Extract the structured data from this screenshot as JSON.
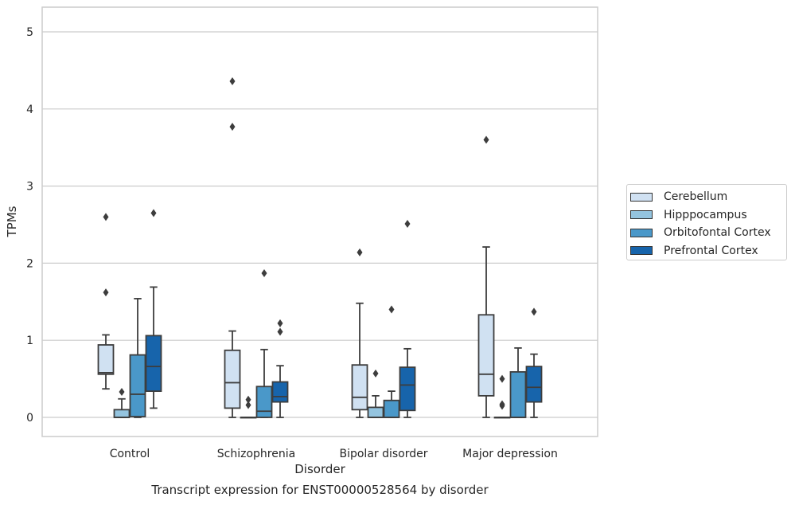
{
  "chart_data": {
    "type": "box",
    "caption": "Transcript expression for ENST00000528564 by disorder",
    "xlabel": "Disorder",
    "ylabel": "TPMs",
    "ylim": [
      -0.25,
      5.32
    ],
    "yticks": [
      0,
      1,
      2,
      3,
      4,
      5
    ],
    "grid": "horizontal",
    "legend_position": "right",
    "categories": [
      "Control",
      "Schizophrenia",
      "Bipolar disorder",
      "Major depression"
    ],
    "series": [
      {
        "name": "Cerebellum",
        "color": "#d0e1f2",
        "boxes": [
          {
            "whisker_low": 0.37,
            "q1": 0.56,
            "median": 0.58,
            "q3": 0.94,
            "whisker_high": 1.07,
            "outliers": [
              1.62,
              2.6
            ]
          },
          {
            "whisker_low": 0.0,
            "q1": 0.12,
            "median": 0.45,
            "q3": 0.87,
            "whisker_high": 1.12,
            "outliers": [
              3.77,
              4.36
            ]
          },
          {
            "whisker_low": 0.0,
            "q1": 0.1,
            "median": 0.26,
            "q3": 0.68,
            "whisker_high": 1.48,
            "outliers": [
              2.14
            ]
          },
          {
            "whisker_low": 0.0,
            "q1": 0.28,
            "median": 0.56,
            "q3": 1.33,
            "whisker_high": 2.21,
            "outliers": [
              3.6
            ]
          }
        ]
      },
      {
        "name": "Hipppocampus",
        "color": "#94c4df",
        "boxes": [
          {
            "whisker_low": 0.0,
            "q1": 0.0,
            "median": 0.0,
            "q3": 0.1,
            "whisker_high": 0.24,
            "outliers": [
              0.33
            ]
          },
          {
            "whisker_low": 0.0,
            "q1": 0.0,
            "median": 0.0,
            "q3": 0.0,
            "whisker_high": 0.0,
            "outliers": [
              0.16,
              0.23
            ]
          },
          {
            "whisker_low": 0.0,
            "q1": 0.0,
            "median": 0.0,
            "q3": 0.13,
            "whisker_high": 0.28,
            "outliers": [
              0.57
            ]
          },
          {
            "whisker_low": 0.0,
            "q1": 0.0,
            "median": 0.0,
            "q3": 0.0,
            "whisker_high": 0.0,
            "outliers": [
              0.15,
              0.17,
              0.5
            ]
          }
        ]
      },
      {
        "name": "Orbitofontal Cortex",
        "color": "#4a98c9",
        "boxes": [
          {
            "whisker_low": 0.0,
            "q1": 0.01,
            "median": 0.3,
            "q3": 0.81,
            "whisker_high": 1.54,
            "outliers": []
          },
          {
            "whisker_low": 0.0,
            "q1": 0.0,
            "median": 0.08,
            "q3": 0.4,
            "whisker_high": 0.88,
            "outliers": [
              1.87
            ]
          },
          {
            "whisker_low": 0.0,
            "q1": 0.0,
            "median": 0.0,
            "q3": 0.22,
            "whisker_high": 0.34,
            "outliers": [
              1.4
            ]
          },
          {
            "whisker_low": 0.0,
            "q1": 0.0,
            "median": 0.0,
            "q3": 0.59,
            "whisker_high": 0.9,
            "outliers": []
          }
        ]
      },
      {
        "name": "Prefrontal Cortex",
        "color": "#1764ab",
        "boxes": [
          {
            "whisker_low": 0.12,
            "q1": 0.34,
            "median": 0.66,
            "q3": 1.06,
            "whisker_high": 1.69,
            "outliers": [
              2.65
            ]
          },
          {
            "whisker_low": 0.0,
            "q1": 0.2,
            "median": 0.27,
            "q3": 0.46,
            "whisker_high": 0.67,
            "outliers": [
              1.11,
              1.22
            ]
          },
          {
            "whisker_low": 0.0,
            "q1": 0.09,
            "median": 0.42,
            "q3": 0.65,
            "whisker_high": 0.89,
            "outliers": [
              2.51
            ]
          },
          {
            "whisker_low": 0.0,
            "q1": 0.2,
            "median": 0.39,
            "q3": 0.66,
            "whisker_high": 0.82,
            "outliers": [
              1.37
            ]
          }
        ]
      }
    ]
  }
}
